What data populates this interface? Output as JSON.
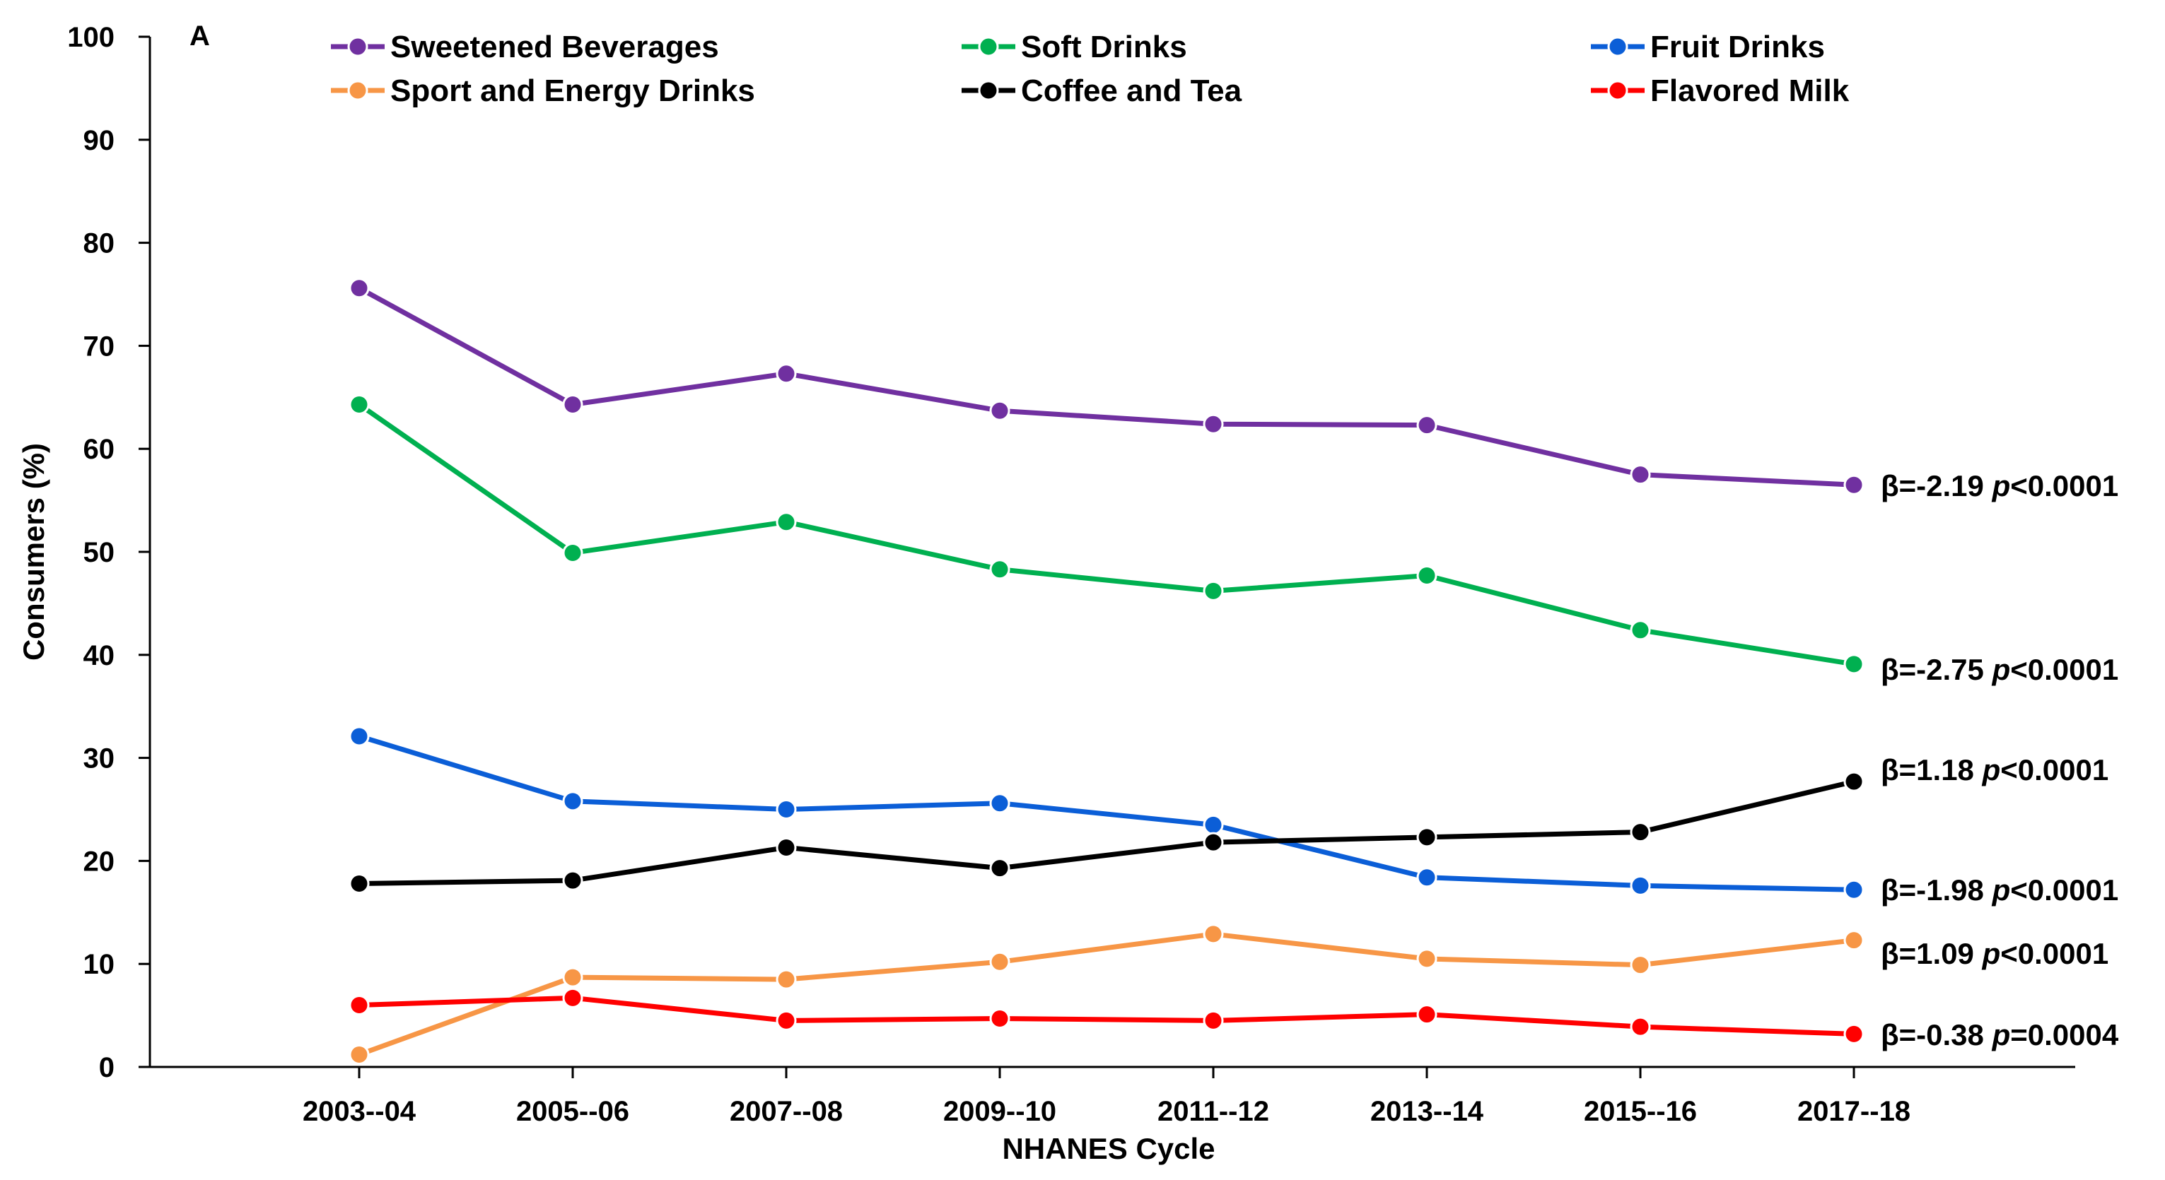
{
  "chart_data": {
    "type": "line",
    "panel_label": "A",
    "xlabel": "NHANES Cycle",
    "ylabel": "Consumers (%)",
    "ylim": [
      0,
      100
    ],
    "yticks": [
      "0",
      "10",
      "20",
      "30",
      "40",
      "50",
      "60",
      "70",
      "80",
      "90",
      "100"
    ],
    "categories": [
      "2003--04",
      "2005--06",
      "2007--08",
      "2009--10",
      "2011--12",
      "2013--14",
      "2015--16",
      "2017--18"
    ],
    "grid": false,
    "legend_position": "top",
    "series": [
      {
        "name": "Sweetened Beverages",
        "color": "#7030a0",
        "values": [
          75.6,
          64.3,
          67.3,
          63.7,
          62.4,
          62.3,
          57.5,
          56.5
        ],
        "annotation": {
          "beta": "β=-2.19",
          "p_symbol": "p",
          "p_value": "<0.0001"
        }
      },
      {
        "name": "Soft Drinks",
        "color": "#00b050",
        "values": [
          64.3,
          49.9,
          52.9,
          48.3,
          46.2,
          47.7,
          42.4,
          39.1
        ],
        "annotation": {
          "beta": "β=-2.75",
          "p_symbol": "p",
          "p_value": "<0.0001"
        }
      },
      {
        "name": "Fruit Drinks",
        "color": "#0b5ed7",
        "values": [
          32.1,
          25.8,
          25.0,
          25.6,
          23.5,
          18.4,
          17.6,
          17.2
        ],
        "annotation": {
          "beta": "β=-1.98",
          "p_symbol": "p",
          "p_value": "<0.0001"
        }
      },
      {
        "name": "Sport and Energy Drinks",
        "color": "#f79646",
        "values": [
          1.2,
          8.7,
          8.5,
          10.2,
          12.9,
          10.5,
          9.9,
          12.3
        ],
        "annotation": {
          "beta": "β=1.09",
          "p_symbol": "p",
          "p_value": "<0.0001"
        }
      },
      {
        "name": "Coffee and Tea",
        "color": "#000000",
        "values": [
          17.8,
          18.1,
          21.3,
          19.3,
          21.8,
          22.3,
          22.8,
          27.7
        ],
        "annotation": {
          "beta": "β=1.18",
          "p_symbol": "p",
          "p_value": "<0.0001"
        }
      },
      {
        "name": "Flavored Milk",
        "color": "#ff0000",
        "values": [
          6.0,
          6.7,
          4.5,
          4.7,
          4.5,
          5.1,
          3.9,
          3.2
        ],
        "annotation": {
          "beta": "β=-0.38",
          "p_symbol": "p",
          "p_value": "=0.0004"
        }
      }
    ]
  }
}
